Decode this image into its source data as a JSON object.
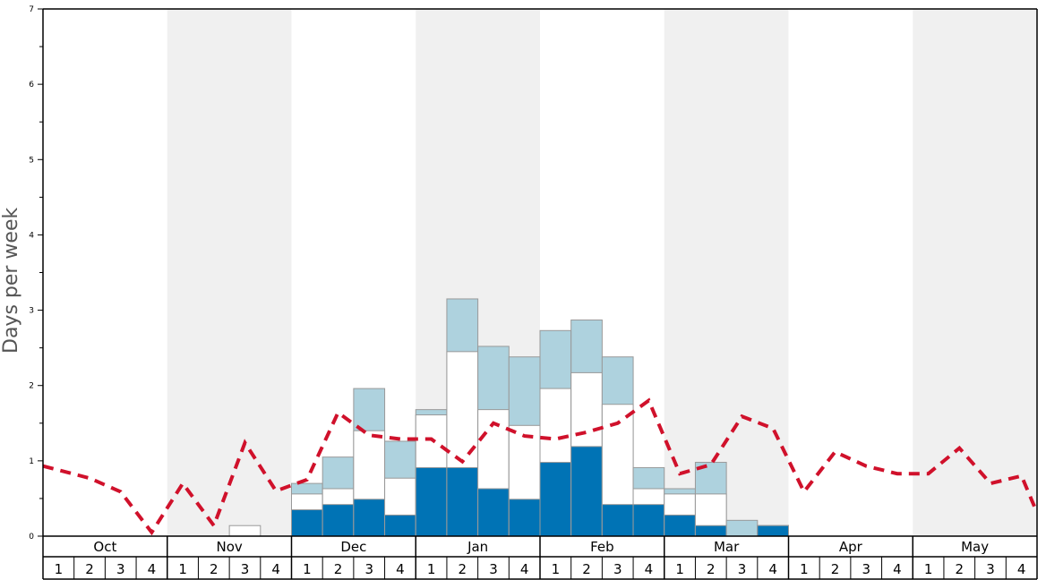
{
  "chart_data": {
    "type": "bar",
    "ylabel": "Days per week",
    "ylim": [
      0,
      7
    ],
    "yticks": [
      "0",
      "1",
      "2",
      "3",
      "4",
      "5",
      "6",
      "7"
    ],
    "months": [
      "Oct",
      "Nov",
      "Dec",
      "Jan",
      "Feb",
      "Mar",
      "Apr",
      "May"
    ],
    "week_labels": [
      "1",
      "2",
      "3",
      "4"
    ],
    "series": [
      {
        "role": "dark",
        "values": [
          0,
          0,
          0,
          0,
          0,
          0,
          0,
          0,
          0.35,
          0.42,
          0.49,
          0.28,
          0.91,
          0.91,
          0.63,
          0.49,
          0.98,
          1.19,
          0.42,
          0.42,
          0.28,
          0.14,
          0,
          0.14,
          0,
          0,
          0,
          0,
          0,
          0,
          0,
          0
        ]
      },
      {
        "role": "white-cumulative",
        "values": [
          0,
          0,
          0,
          0,
          0,
          0,
          0.14,
          0,
          0.56,
          0.63,
          1.4,
          0.77,
          1.61,
          2.45,
          1.68,
          1.47,
          1.96,
          2.17,
          1.75,
          0.63,
          0.56,
          0.56,
          0,
          0.14,
          0,
          0,
          0,
          0,
          0,
          0,
          0,
          0
        ]
      },
      {
        "role": "light-cumulative",
        "values": [
          0,
          0,
          0,
          0,
          0,
          0,
          0,
          0,
          0.7,
          1.05,
          1.96,
          1.26,
          1.68,
          3.15,
          2.52,
          2.38,
          2.73,
          2.87,
          2.38,
          0.91,
          0.63,
          0.98,
          0.21,
          0.14,
          0,
          0,
          0,
          0,
          0,
          0,
          0,
          0
        ]
      },
      {
        "role": "average-line",
        "values": [
          0.93,
          0.77,
          0.59,
          0.05,
          0.7,
          0.14,
          1.24,
          0.6,
          0.75,
          1.64,
          1.34,
          1.29,
          1.29,
          0.99,
          1.5,
          1.33,
          1.29,
          1.38,
          1.5,
          1.8,
          0.83,
          0.95,
          1.59,
          1.43,
          0.59,
          1.12,
          0.93,
          0.83,
          0.83,
          1.17,
          0.7,
          0.8
        ]
      }
    ],
    "extra_point": {
      "role": "average-line-end",
      "value": 0.31
    },
    "colors": {
      "dark": "#0073b5",
      "white": "#ffffff",
      "light": "#aed2de",
      "line": "#d0112b",
      "band": "#f0f0f0",
      "bar_stroke": "#999999"
    }
  }
}
